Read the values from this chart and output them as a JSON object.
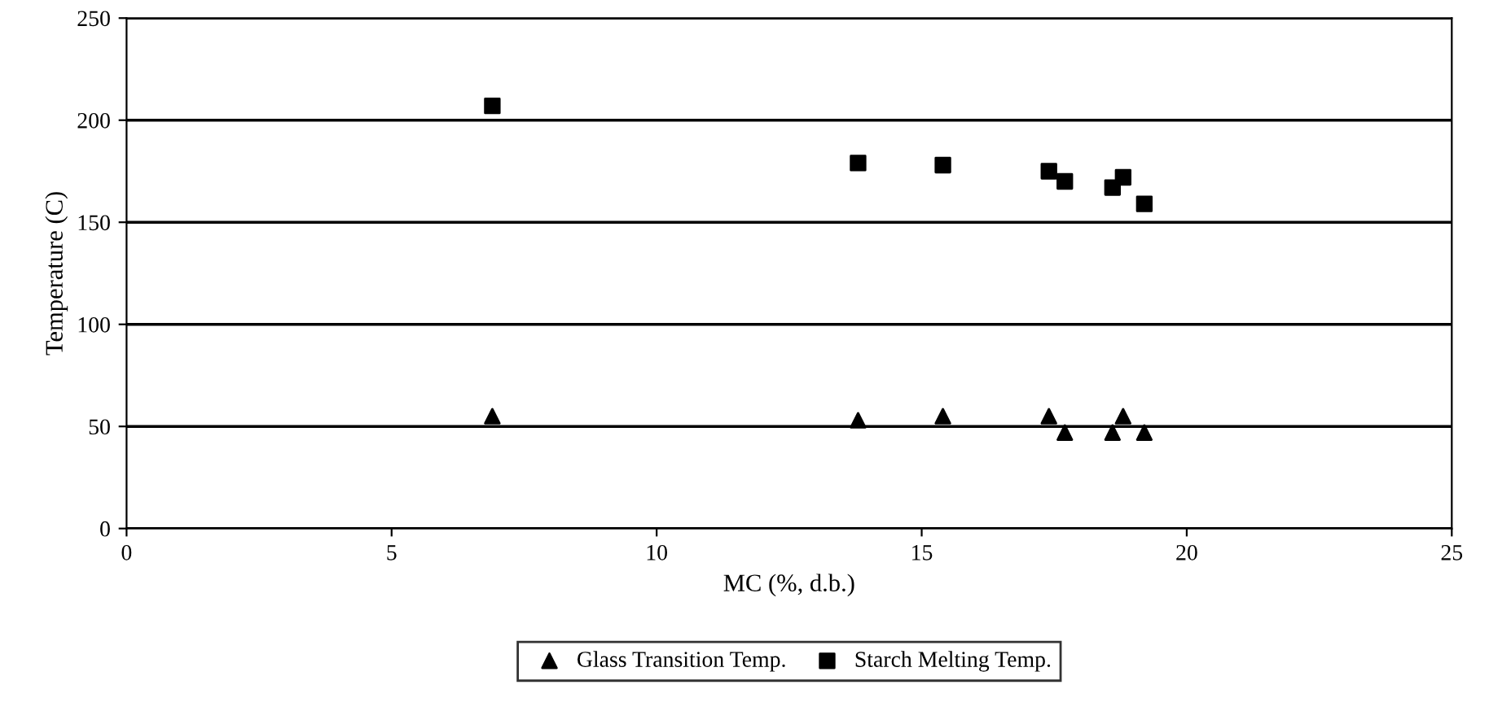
{
  "chart_data": {
    "type": "scatter",
    "xlabel": "MC (%, d.b.)",
    "ylabel": "Temperature (C)",
    "xlim": [
      0,
      25
    ],
    "xticks": [
      0,
      5,
      10,
      15,
      20,
      25
    ],
    "ylim": [
      0,
      250
    ],
    "yticks": [
      0,
      50,
      100,
      150,
      200,
      250
    ],
    "grid": "y",
    "legend": "bottom",
    "series": [
      {
        "name": "Glass Transition Temp.",
        "color": "#000000",
        "marker": "triangle",
        "x": [
          6.9,
          13.8,
          15.4,
          17.4,
          17.7,
          18.6,
          18.8,
          19.2
        ],
        "values": [
          55,
          53,
          55,
          55,
          47,
          47,
          55,
          47
        ]
      },
      {
        "name": "Starch Melting Temp.",
        "color": "#000000",
        "marker": "square",
        "x": [
          6.9,
          13.8,
          15.4,
          17.4,
          17.7,
          18.6,
          18.8,
          19.2
        ],
        "values": [
          207,
          179,
          178,
          175,
          170,
          167,
          172,
          159
        ]
      }
    ]
  }
}
